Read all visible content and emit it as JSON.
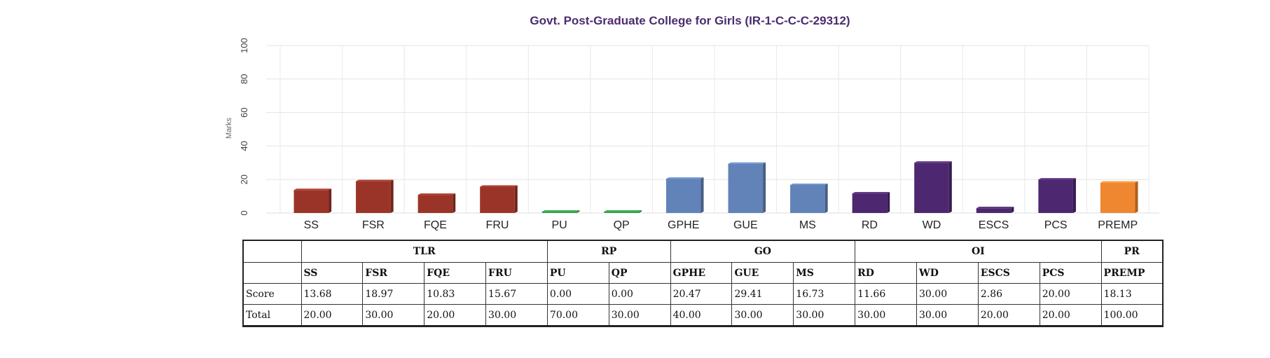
{
  "chart_data": {
    "type": "bar",
    "title": "Govt. Post-Graduate College for Girls (IR-1-C-C-C-29312)",
    "ylabel": "Marks",
    "ylim": [
      0,
      100
    ],
    "yticks": [
      0,
      20,
      40,
      60,
      80,
      100
    ],
    "grid": true,
    "categories": [
      "SS",
      "FSR",
      "FQE",
      "FRU",
      "PU",
      "QP",
      "GPHE",
      "GUE",
      "MS",
      "RD",
      "WD",
      "ESCS",
      "PCS",
      "PREMP"
    ],
    "values": [
      13.68,
      18.97,
      10.83,
      15.67,
      0.0,
      0.0,
      20.47,
      29.41,
      16.73,
      11.66,
      30.0,
      2.86,
      20.0,
      18.13
    ],
    "bar_colors": [
      "#9b3428",
      "#9b3428",
      "#9b3428",
      "#9b3428",
      "#3a9d50",
      "#3a9d50",
      "#6283b8",
      "#6283b8",
      "#6283b8",
      "#4d2770",
      "#4d2770",
      "#4d2770",
      "#4d2770",
      "#ef8630"
    ]
  },
  "table": {
    "groups": [
      {
        "label": "TLR",
        "span": 4
      },
      {
        "label": "RP",
        "span": 2
      },
      {
        "label": "GO",
        "span": 3
      },
      {
        "label": "OI",
        "span": 4
      },
      {
        "label": "PR",
        "span": 1
      }
    ],
    "codes": [
      "SS",
      "FSR",
      "FQE",
      "FRU",
      "PU",
      "QP",
      "GPHE",
      "GUE",
      "MS",
      "RD",
      "WD",
      "ESCS",
      "PCS",
      "PREMP"
    ],
    "rows": [
      {
        "label": "Score",
        "values": [
          "13.68",
          "18.97",
          "10.83",
          "15.67",
          "0.00",
          "0.00",
          "20.47",
          "29.41",
          "16.73",
          "11.66",
          "30.00",
          "2.86",
          "20.00",
          "18.13"
        ]
      },
      {
        "label": "Total",
        "values": [
          "20.00",
          "30.00",
          "20.00",
          "30.00",
          "70.00",
          "30.00",
          "40.00",
          "30.00",
          "30.00",
          "30.00",
          "30.00",
          "20.00",
          "20.00",
          "100.00"
        ]
      }
    ]
  }
}
